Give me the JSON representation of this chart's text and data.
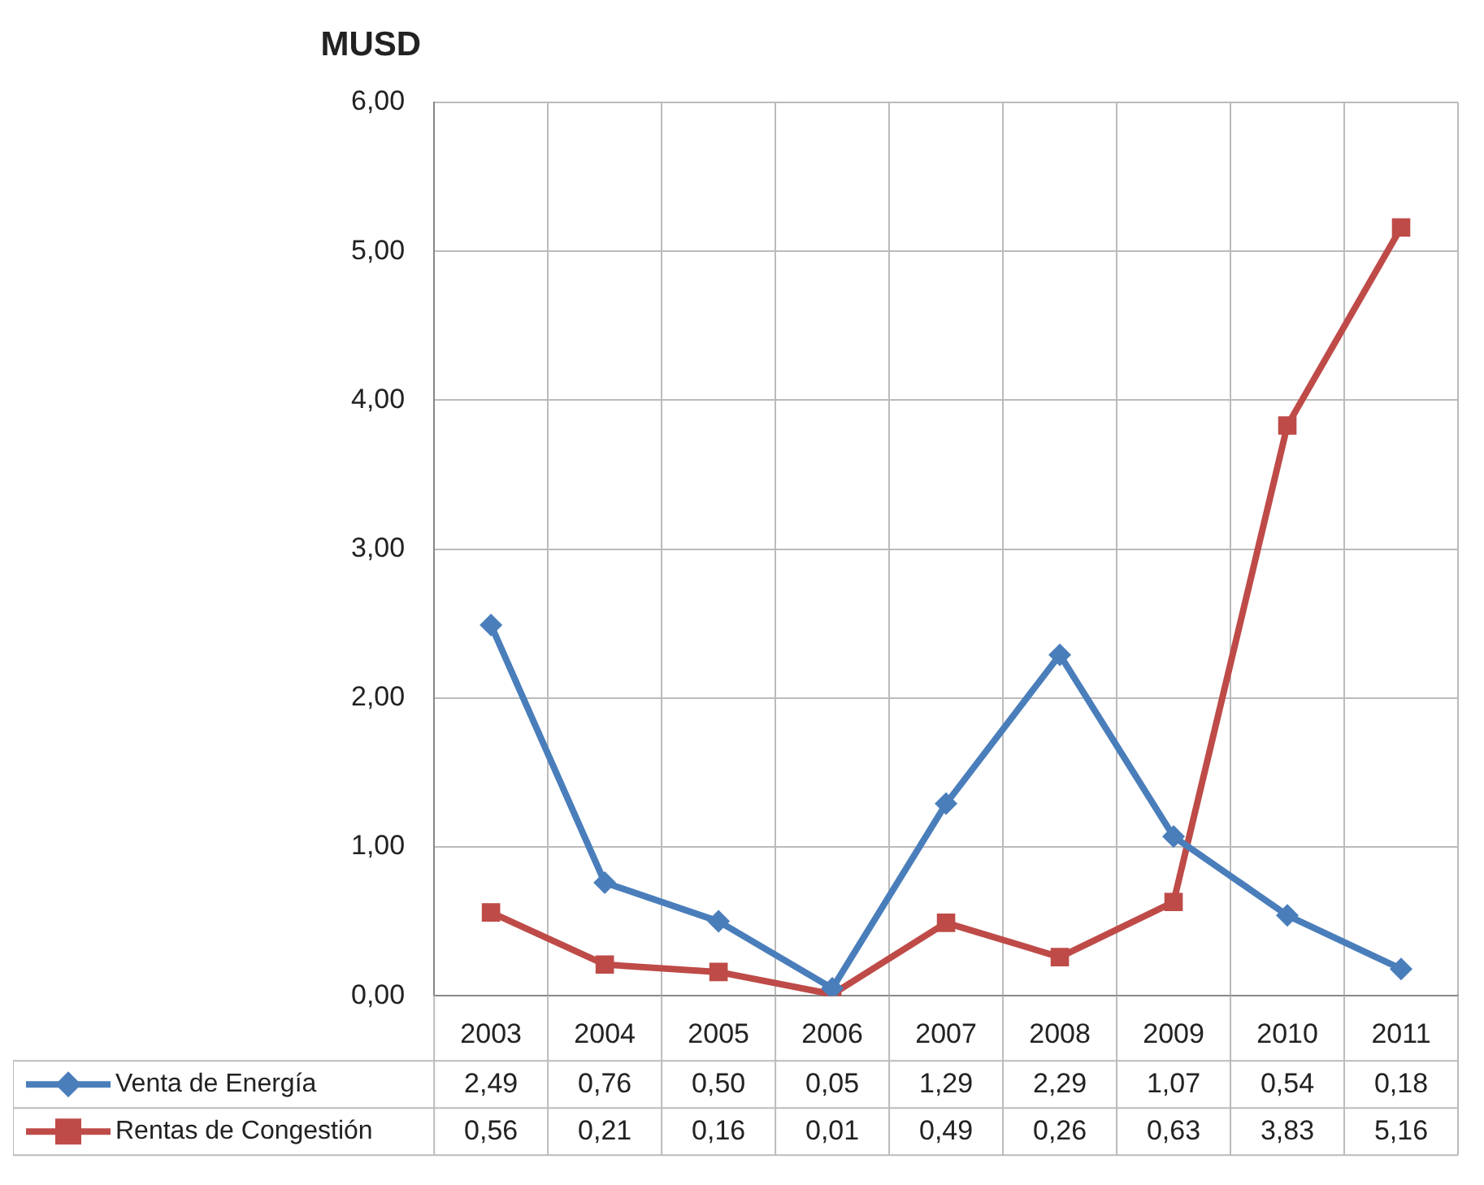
{
  "chart_data": {
    "type": "line",
    "ylabel": "MUSD",
    "categories": [
      "2003",
      "2004",
      "2005",
      "2006",
      "2007",
      "2008",
      "2009",
      "2010",
      "2011"
    ],
    "series": [
      {
        "name": "Venta de Energía",
        "color": "#4a7ebb",
        "marker": "diamond",
        "values": [
          2.49,
          0.76,
          0.5,
          0.05,
          1.29,
          2.29,
          1.07,
          0.54,
          0.18
        ],
        "value_labels": [
          "2,49",
          "0,76",
          "0,50",
          "0,05",
          "1,29",
          "2,29",
          "1,07",
          "0,54",
          "0,18"
        ]
      },
      {
        "name": "Rentas de Congestión",
        "color": "#be4b48",
        "marker": "square",
        "values": [
          0.56,
          0.21,
          0.16,
          0.01,
          0.49,
          0.26,
          0.63,
          3.83,
          5.16
        ],
        "value_labels": [
          "0,56",
          "0,21",
          "0,16",
          "0,01",
          "0,49",
          "0,26",
          "0,63",
          "3,83",
          "5,16"
        ]
      }
    ],
    "ylim": [
      0,
      6
    ],
    "yticks": [
      {
        "value": 0,
        "label": "0,00"
      },
      {
        "value": 1,
        "label": "1,00"
      },
      {
        "value": 2,
        "label": "2,00"
      },
      {
        "value": 3,
        "label": "3,00"
      },
      {
        "value": 4,
        "label": "4,00"
      },
      {
        "value": 5,
        "label": "5,00"
      },
      {
        "value": 6,
        "label": "6,00"
      }
    ],
    "grid": true,
    "legend": "bottom",
    "line_style": "solid"
  }
}
